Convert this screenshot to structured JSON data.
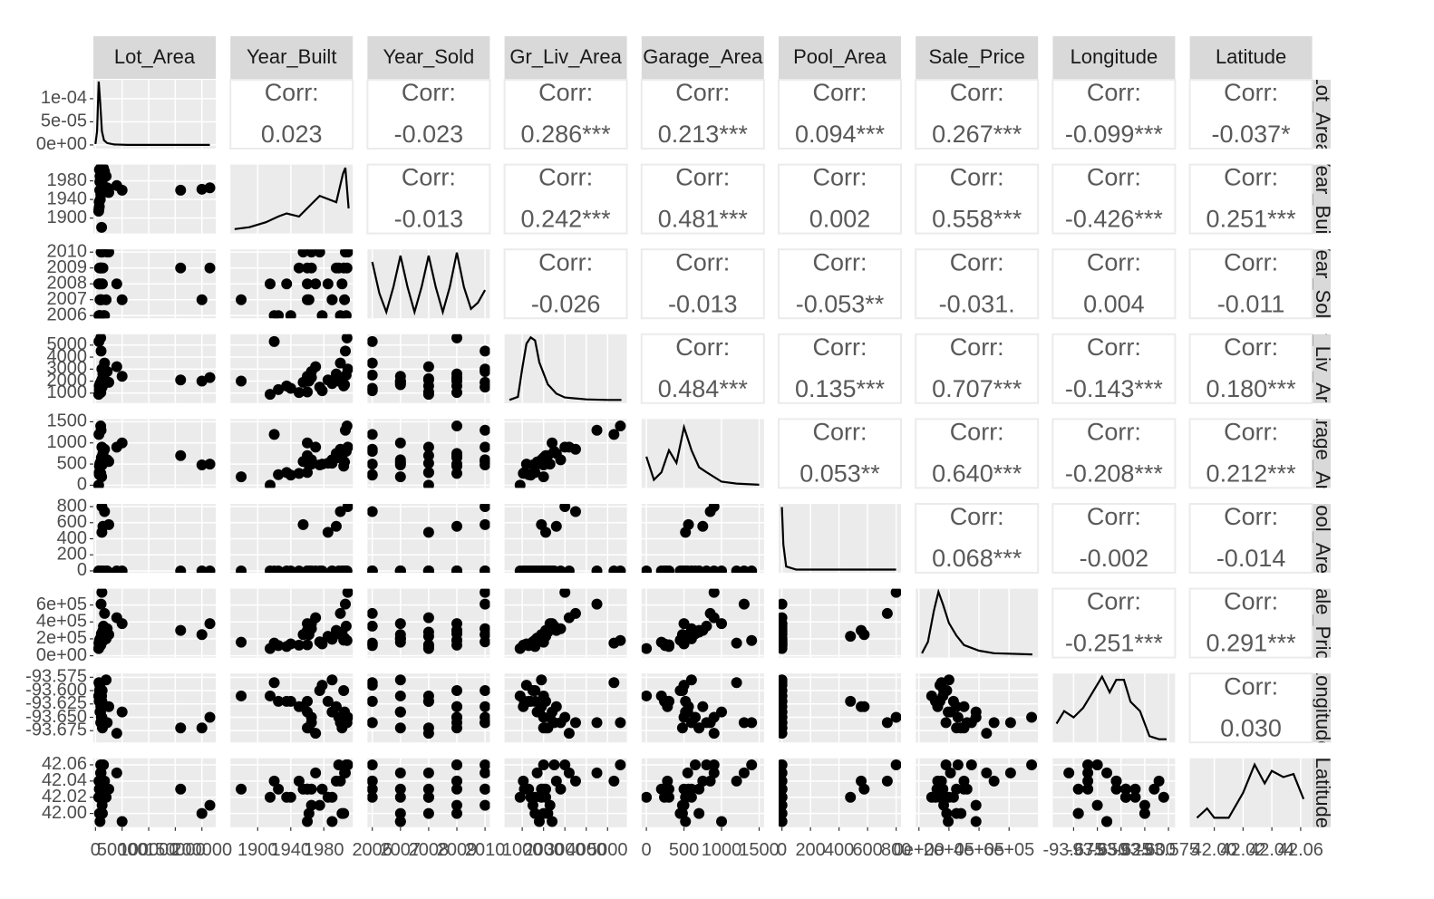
{
  "chart_data": {
    "type": "scatter-matrix",
    "grid": true,
    "point_color": "#000000",
    "line_color": "#000000",
    "corr_label": "Corr:",
    "variables": [
      {
        "name": "Lot_Area",
        "lim": [
          -4000,
          226000
        ],
        "ticks": [
          0,
          50000,
          100000,
          150000,
          200000
        ],
        "density": {
          "x": [
            0,
            3000,
            6000,
            9000,
            12000,
            16000,
            22000,
            35000,
            60000,
            100000,
            150000,
            215000
          ],
          "y": [
            2e-06,
            3e-05,
            0.000137,
            9e-05,
            3e-05,
            1e-05,
            4e-06,
            1e-06,
            0,
            0,
            0,
            0
          ],
          "ylim": [
            -8e-06,
            0.000141
          ],
          "yticks": [
            {
              "value": 0,
              "label": "0e+00"
            },
            {
              "value": 5e-05,
              "label": "5e-05"
            },
            {
              "value": 0.0001,
              "label": "1e-04"
            }
          ]
        }
      },
      {
        "name": "Year_Built",
        "lim": [
          1867,
          2015
        ],
        "ticks": [
          1900,
          1940,
          1980
        ],
        "density": {
          "x": [
            1872,
            1890,
            1910,
            1925,
            1935,
            1950,
            1965,
            1975,
            1985,
            1995,
            2003,
            2006,
            2010
          ],
          "y": [
            0.02,
            0.05,
            0.13,
            0.22,
            0.27,
            0.22,
            0.42,
            0.55,
            0.5,
            0.45,
            0.9,
            1,
            0.35
          ],
          "ylim": [
            -0.05,
            1.05
          ]
        }
      },
      {
        "name": "Year_Sold",
        "lim": [
          2005.83,
          2010.17
        ],
        "ticks": [
          2006,
          2007,
          2008,
          2009,
          2010
        ],
        "density": {
          "x": [
            2006,
            2006.25,
            2006.5,
            2006.75,
            2007,
            2007.25,
            2007.5,
            2007.75,
            2008,
            2008.25,
            2008.5,
            2008.75,
            2009,
            2009.25,
            2009.5,
            2009.75,
            2010
          ],
          "y": [
            0.85,
            0.35,
            0.05,
            0.45,
            0.95,
            0.45,
            0.05,
            0.45,
            0.95,
            0.45,
            0.05,
            0.45,
            1,
            0.45,
            0.1,
            0.2,
            0.4
          ],
          "ylim": [
            -0.05,
            1.05
          ]
        }
      },
      {
        "name": "Gr_Liv_Area",
        "lim": [
          170,
          5906
        ],
        "ticks": [
          1000,
          2000,
          3000,
          4000,
          5000
        ],
        "density": {
          "x": [
            400,
            800,
            1000,
            1200,
            1400,
            1600,
            1800,
            2200,
            2600,
            3000,
            4000,
            5000,
            5650
          ],
          "y": [
            0,
            0.05,
            0.5,
            0.9,
            1,
            0.95,
            0.6,
            0.25,
            0.1,
            0.04,
            0.01,
            0,
            0
          ],
          "ylim": [
            -0.05,
            1.05
          ]
        }
      },
      {
        "name": "Garage_Area",
        "lim": [
          -64,
          1564
        ],
        "ticks": [
          0,
          500,
          1000,
          1500
        ],
        "density": {
          "x": [
            0,
            100,
            200,
            300,
            400,
            500,
            600,
            700,
            800,
            1000,
            1200,
            1500
          ],
          "y": [
            0.45,
            0.08,
            0.2,
            0.55,
            0.35,
            0.92,
            0.55,
            0.28,
            0.2,
            0.05,
            0.02,
            0
          ],
          "ylim": [
            -0.05,
            1.05
          ]
        }
      },
      {
        "name": "Pool_Area",
        "lim": [
          -23,
          834
        ],
        "ticks": [
          0,
          200,
          400,
          600,
          800
        ],
        "density": {
          "x": [
            0,
            10,
            30,
            100,
            300,
            500,
            800
          ],
          "y": [
            1,
            0.4,
            0.05,
            0,
            0,
            0,
            0
          ],
          "ylim": [
            -0.05,
            1.05
          ]
        }
      },
      {
        "name": "Sale_Price",
        "lim": [
          -21429,
          792857
        ],
        "ticks": [
          {
            "value": 0,
            "label": "0e+00"
          },
          {
            "value": 200000,
            "label": "2e+05"
          },
          {
            "value": 400000,
            "label": "4e+05"
          },
          {
            "value": 600000,
            "label": "6e+05"
          }
        ],
        "density": {
          "x": [
            20000,
            60000,
            100000,
            130000,
            160000,
            200000,
            250000,
            300000,
            400000,
            500000,
            755000
          ],
          "y": [
            0.02,
            0.2,
            0.7,
            1,
            0.8,
            0.5,
            0.3,
            0.15,
            0.06,
            0.02,
            0
          ],
          "ylim": [
            -0.05,
            1.05
          ]
        }
      },
      {
        "name": "Longitude",
        "lim": [
          -93.697,
          -93.568
        ],
        "ticks": [
          -93.675,
          {
            "value": -93.65,
            "label": "-93.650"
          },
          -93.625,
          {
            "value": -93.6,
            "label": "-93.600"
          },
          -93.575
        ],
        "density": {
          "x": [
            -93.693,
            -93.685,
            -93.675,
            -93.665,
            -93.655,
            -93.645,
            -93.637,
            -93.63,
            -93.622,
            -93.615,
            -93.605,
            -93.595,
            -93.585,
            -93.577
          ],
          "y": [
            0.25,
            0.45,
            0.35,
            0.5,
            0.75,
            1,
            0.75,
            0.95,
            0.95,
            0.6,
            0.45,
            0.05,
            0,
            0
          ],
          "ylim": [
            -0.05,
            1.05
          ]
        }
      },
      {
        "name": "Latitude",
        "lim": [
          41.983,
          42.068
        ],
        "ticks": [
          {
            "value": 42,
            "label": "42.00"
          },
          42.02,
          42.04,
          42.06
        ],
        "density": {
          "x": [
            41.988,
            41.995,
            42.0,
            42.01,
            42.02,
            42.028,
            42.035,
            42.04,
            42.048,
            42.055,
            42.062
          ],
          "y": [
            0.1,
            0.25,
            0.1,
            0.1,
            0.5,
            0.95,
            0.65,
            0.85,
            0.75,
            0.8,
            0.4
          ],
          "ylim": [
            -0.05,
            1.05
          ]
        }
      }
    ],
    "correlations": [
      {
        "values": [
          0.023,
          -0.023,
          0.286,
          0.213,
          0.094,
          0.267,
          -0.099,
          -0.037
        ],
        "value_labels": [
          "0.023",
          "-0.023",
          "0.286***",
          "0.213***",
          "0.094***",
          "0.267***",
          "-0.099***",
          "-0.037*"
        ]
      },
      {
        "values": [
          -0.013,
          0.242,
          0.481,
          0.002,
          0.558,
          -0.426,
          0.251
        ],
        "value_labels": [
          "-0.013",
          "0.242***",
          "0.481***",
          "0.002",
          "0.558***",
          "-0.426***",
          "0.251***"
        ]
      },
      {
        "values": [
          -0.026,
          -0.013,
          -0.053,
          -0.031,
          0.004,
          -0.011
        ],
        "value_labels": [
          "-0.026",
          "-0.013",
          "-0.053**",
          "-0.031.",
          "0.004",
          "-0.011"
        ]
      },
      {
        "values": [
          0.484,
          0.135,
          0.707,
          -0.143,
          0.18
        ],
        "value_labels": [
          "0.484***",
          "0.135***",
          "0.707***",
          "-0.143***",
          "0.180***"
        ]
      },
      {
        "values": [
          0.053,
          0.64,
          -0.208,
          0.212
        ],
        "value_labels": [
          "0.053**",
          "0.640***",
          "-0.208***",
          "0.212***"
        ]
      },
      {
        "values": [
          0.068,
          -0.002,
          -0.014
        ],
        "value_labels": [
          "0.068***",
          "-0.002",
          "-0.014"
        ]
      },
      {
        "values": [
          -0.251,
          0.291
        ],
        "value_labels": [
          "-0.251***",
          "0.291***"
        ]
      },
      {
        "values": [
          0.03
        ],
        "value_labels": [
          "0.030"
        ]
      }
    ],
    "observations": [
      [
        8000,
        1960,
        2008,
        1100,
        300,
        0,
        130000,
        -93.62,
        42.03
      ],
      [
        9500,
        2005,
        2007,
        1700,
        550,
        0,
        210000,
        -93.64,
        42.05
      ],
      [
        11000,
        1998,
        2009,
        2000,
        650,
        0,
        260000,
        -93.65,
        42.06
      ],
      [
        7200,
        1925,
        2006,
        1300,
        250,
        0,
        120000,
        -93.62,
        42.03
      ],
      [
        12500,
        1975,
        2010,
        1500,
        480,
        0,
        165000,
        -93.6,
        42.01
      ],
      [
        6000,
        1915,
        2008,
        900,
        0,
        0,
        85000,
        -93.61,
        42.02
      ],
      [
        15000,
        2007,
        2006,
        2500,
        800,
        0,
        350000,
        -93.66,
        42.06
      ],
      [
        10000,
        1950,
        2009,
        1050,
        280,
        0,
        125000,
        -93.63,
        42.04
      ],
      [
        8500,
        1990,
        2007,
        1800,
        520,
        0,
        195000,
        -93.64,
        41.99
      ],
      [
        13000,
        2002,
        2008,
        2200,
        700,
        0,
        280000,
        -93.67,
        42.0
      ],
      [
        22000,
        1965,
        2010,
        2800,
        600,
        0,
        320000,
        -93.66,
        42.03
      ],
      [
        9000,
        1940,
        2006,
        1400,
        240,
        0,
        140000,
        -93.62,
        42.02
      ],
      [
        7500,
        2004,
        2009,
        1600,
        450,
        0,
        185000,
        -93.6,
        42.0
      ],
      [
        11500,
        1880,
        2007,
        2000,
        200,
        0,
        160000,
        -93.61,
        42.03
      ],
      [
        40000,
        1970,
        2008,
        3200,
        900,
        0,
        450000,
        -93.68,
        42.05
      ],
      [
        10500,
        2006,
        2010,
        4500,
        1300,
        0,
        610000,
        -93.66,
        42.05
      ],
      [
        8200,
        1978,
        2006,
        1200,
        500,
        0,
        140000,
        -93.59,
        42.03
      ],
      [
        50000,
        1960,
        2007,
        2400,
        1000,
        0,
        380000,
        -93.64,
        41.99
      ],
      [
        14000,
        1995,
        2009,
        2600,
        750,
        555,
        300000,
        -93.63,
        42.04
      ],
      [
        12000,
        1985,
        2008,
        2100,
        520,
        480,
        230000,
        -93.62,
        42.02
      ],
      [
        17000,
        2000,
        2006,
        3500,
        850,
        738,
        500000,
        -93.66,
        42.04
      ],
      [
        25000,
        1955,
        2010,
        1900,
        560,
        576,
        250000,
        -93.63,
        42.03
      ],
      [
        160000,
        1960,
        2009,
        2100,
        700,
        0,
        300000,
        -93.67,
        42.03
      ],
      [
        215000,
        1965,
        2009,
        2300,
        500,
        0,
        380000,
        -93.65,
        42.01
      ],
      [
        200000,
        1962,
        2007,
        2000,
        480,
        0,
        250000,
        -93.67,
        42.0
      ],
      [
        9800,
        2008,
        2009,
        5600,
        1400,
        0,
        180000,
        -93.66,
        42.06
      ],
      [
        7000,
        1935,
        2008,
        1600,
        300,
        0,
        110000,
        -93.62,
        42.02
      ],
      [
        20000,
        1990,
        2007,
        1900,
        600,
        0,
        200000,
        -93.58,
        42.02
      ],
      [
        6500,
        1920,
        2006,
        5300,
        1200,
        0,
        150000,
        -93.585,
        42.04
      ],
      [
        12000,
        2009,
        2010,
        3000,
        900,
        800,
        750000,
        -93.65,
        42.06
      ]
    ]
  }
}
